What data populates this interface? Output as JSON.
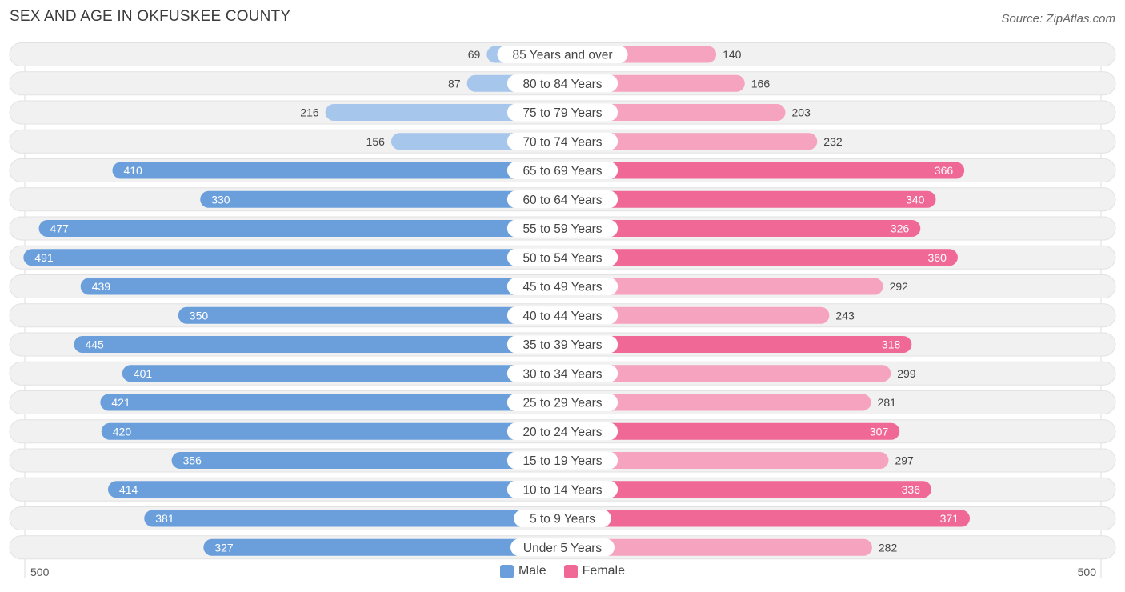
{
  "title": "SEX AND AGE IN OKFUSKEE COUNTY",
  "source": "Source: ZipAtlas.com",
  "legend": {
    "male_label": "Male",
    "female_label": "Female"
  },
  "axis": {
    "left_label": "500",
    "right_label": "500"
  },
  "colors": {
    "male_strong": "#6a9fdc",
    "male_light": "#a6c6eb",
    "female_strong": "#f06896",
    "female_light": "#f6a3c0",
    "row_bg": "#f1f1f1"
  },
  "chart_data": {
    "type": "bar",
    "orientation": "horizontal-butterfly",
    "xlim": [
      0,
      500
    ],
    "categories": [
      "85 Years and over",
      "80 to 84 Years",
      "75 to 79 Years",
      "70 to 74 Years",
      "65 to 69 Years",
      "60 to 64 Years",
      "55 to 59 Years",
      "50 to 54 Years",
      "45 to 49 Years",
      "40 to 44 Years",
      "35 to 39 Years",
      "30 to 34 Years",
      "25 to 29 Years",
      "20 to 24 Years",
      "15 to 19 Years",
      "10 to 14 Years",
      "5 to 9 Years",
      "Under 5 Years"
    ],
    "series": [
      {
        "name": "Male",
        "values": [
          69,
          87,
          216,
          156,
          410,
          330,
          477,
          491,
          439,
          350,
          445,
          401,
          421,
          420,
          356,
          414,
          381,
          327
        ]
      },
      {
        "name": "Female",
        "values": [
          140,
          166,
          203,
          232,
          366,
          340,
          326,
          360,
          292,
          243,
          318,
          299,
          281,
          307,
          297,
          336,
          371,
          282
        ]
      }
    ],
    "legend_position": "bottom-center"
  }
}
